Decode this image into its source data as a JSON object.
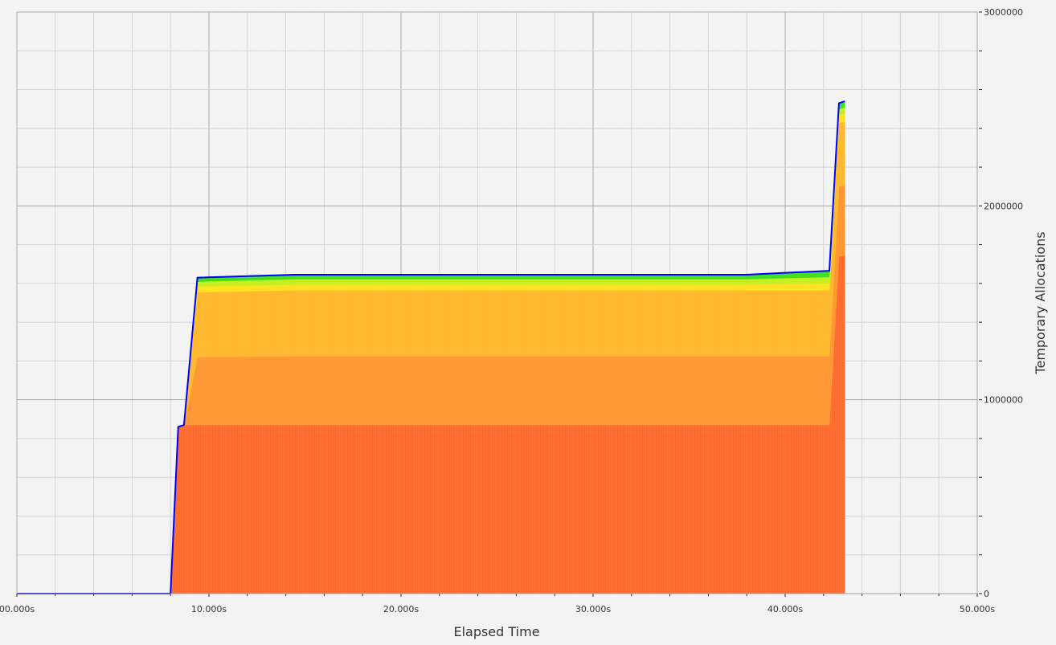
{
  "chart_data": {
    "type": "area",
    "stacked": true,
    "xlabel": "Elapsed Time",
    "ylabel": "Temporary Allocations",
    "xlim": [
      0,
      50
    ],
    "ylim": [
      0,
      3000000
    ],
    "x_ticks": [
      "00.000s",
      "10.000s",
      "20.000s",
      "30.000s",
      "40.000s",
      "50.000s"
    ],
    "y_ticks": [
      "0",
      "1000000",
      "2000000",
      "3000000"
    ],
    "y_axis_side": "right",
    "grid": true,
    "legend": "none",
    "x": [
      0,
      8.0,
      8.4,
      8.7,
      9.4,
      14.5,
      38.0,
      40.0,
      42.3,
      42.8,
      43.1
    ],
    "series": [
      {
        "color": "#ff6a2c",
        "values": [
          0,
          0,
          860000,
          870000,
          870000,
          870000,
          870000,
          870000,
          870000,
          1740000,
          1745000
        ]
      },
      {
        "color": "#ff9630",
        "values": [
          0,
          0,
          0,
          0,
          350000,
          355000,
          355000,
          355000,
          355000,
          360000,
          360000
        ]
      },
      {
        "color": "#ffb82c",
        "values": [
          0,
          0,
          0,
          0,
          335000,
          340000,
          340000,
          340000,
          340000,
          330000,
          330000
        ]
      },
      {
        "color": "#ffe21e",
        "values": [
          0,
          0,
          0,
          0,
          30000,
          30000,
          30000,
          33000,
          35000,
          40000,
          40000
        ]
      },
      {
        "color": "#c4ef1c",
        "values": [
          0,
          0,
          0,
          0,
          25000,
          27000,
          27000,
          30000,
          33000,
          30000,
          33000
        ]
      },
      {
        "color": "#3ede1e",
        "values": [
          0,
          0,
          0,
          0,
          20000,
          23000,
          23000,
          27000,
          32000,
          30000,
          32000
        ]
      }
    ],
    "total_line": {
      "color": "#0000ff",
      "values": [
        0,
        0,
        860000,
        870000,
        1630000,
        1645000,
        1645000,
        1655000,
        1665000,
        2530000,
        2540000
      ]
    }
  }
}
